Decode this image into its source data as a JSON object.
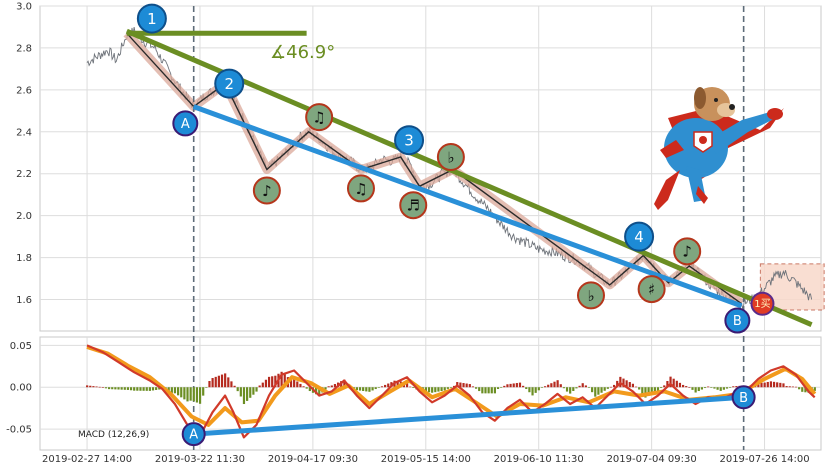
{
  "chart_data": [
    {
      "type": "line",
      "ylim": [
        1.45,
        3.0
      ],
      "y_ticks": [
        "3.0",
        "2.8",
        "2.6",
        "2.4",
        "2.2",
        "2.0",
        "1.8",
        "1.6"
      ],
      "y_tick_values": [
        3.0,
        2.8,
        2.6,
        2.4,
        2.2,
        2.0,
        1.8,
        1.6
      ],
      "x_ticks": [
        "2019-02-27 14:00",
        "2019-03-22 11:30",
        "2019-04-17 09:30",
        "2019-05-15 14:00",
        "2019-06-10 11:30",
        "2019-07-04 09:30",
        "2019-07-26 14:00"
      ],
      "x_tick_index": [
        0,
        108,
        216,
        324,
        432,
        540,
        648
      ],
      "x_range": [
        -45,
        702
      ],
      "grid": true,
      "price_series": [
        {
          "x": 0,
          "y": 2.73
        },
        {
          "x": 10,
          "y": 2.76
        },
        {
          "x": 20,
          "y": 2.79
        },
        {
          "x": 28,
          "y": 2.74
        },
        {
          "x": 38,
          "y": 2.86
        },
        {
          "x": 45,
          "y": 2.88
        },
        {
          "x": 55,
          "y": 2.83
        },
        {
          "x": 65,
          "y": 2.8
        },
        {
          "x": 78,
          "y": 2.69
        },
        {
          "x": 90,
          "y": 2.6
        },
        {
          "x": 102,
          "y": 2.52
        },
        {
          "x": 112,
          "y": 2.57
        },
        {
          "x": 122,
          "y": 2.6
        },
        {
          "x": 132,
          "y": 2.63
        },
        {
          "x": 142,
          "y": 2.54
        },
        {
          "x": 152,
          "y": 2.44
        },
        {
          "x": 162,
          "y": 2.33
        },
        {
          "x": 172,
          "y": 2.22
        },
        {
          "x": 182,
          "y": 2.26
        },
        {
          "x": 192,
          "y": 2.31
        },
        {
          "x": 202,
          "y": 2.37
        },
        {
          "x": 212,
          "y": 2.4
        },
        {
          "x": 222,
          "y": 2.37
        },
        {
          "x": 232,
          "y": 2.32
        },
        {
          "x": 242,
          "y": 2.28
        },
        {
          "x": 252,
          "y": 2.26
        },
        {
          "x": 262,
          "y": 2.22
        },
        {
          "x": 272,
          "y": 2.23
        },
        {
          "x": 282,
          "y": 2.27
        },
        {
          "x": 292,
          "y": 2.26
        },
        {
          "x": 300,
          "y": 2.28
        },
        {
          "x": 310,
          "y": 2.24
        },
        {
          "x": 318,
          "y": 2.14
        },
        {
          "x": 328,
          "y": 2.15
        },
        {
          "x": 340,
          "y": 2.2
        },
        {
          "x": 350,
          "y": 2.22
        },
        {
          "x": 360,
          "y": 2.16
        },
        {
          "x": 372,
          "y": 2.09
        },
        {
          "x": 384,
          "y": 2.03
        },
        {
          "x": 396,
          "y": 1.96
        },
        {
          "x": 408,
          "y": 1.9
        },
        {
          "x": 420,
          "y": 1.87
        },
        {
          "x": 432,
          "y": 1.84
        },
        {
          "x": 444,
          "y": 1.83
        },
        {
          "x": 456,
          "y": 1.81
        },
        {
          "x": 468,
          "y": 1.79
        },
        {
          "x": 480,
          "y": 1.75
        },
        {
          "x": 492,
          "y": 1.7
        },
        {
          "x": 500,
          "y": 1.67
        },
        {
          "x": 510,
          "y": 1.71
        },
        {
          "x": 522,
          "y": 1.76
        },
        {
          "x": 532,
          "y": 1.81
        },
        {
          "x": 540,
          "y": 1.78
        },
        {
          "x": 548,
          "y": 1.72
        },
        {
          "x": 556,
          "y": 1.68
        },
        {
          "x": 566,
          "y": 1.73
        },
        {
          "x": 576,
          "y": 1.76
        },
        {
          "x": 586,
          "y": 1.72
        },
        {
          "x": 596,
          "y": 1.67
        },
        {
          "x": 606,
          "y": 1.63
        },
        {
          "x": 616,
          "y": 1.6
        },
        {
          "x": 626,
          "y": 1.58
        },
        {
          "x": 636,
          "y": 1.6
        },
        {
          "x": 646,
          "y": 1.64
        },
        {
          "x": 656,
          "y": 1.7
        },
        {
          "x": 666,
          "y": 1.73
        },
        {
          "x": 676,
          "y": 1.69
        },
        {
          "x": 686,
          "y": 1.64
        },
        {
          "x": 693,
          "y": 1.6
        }
      ],
      "zigzag": [
        {
          "x": 38,
          "y": 2.87
        },
        {
          "x": 102,
          "y": 2.52
        },
        {
          "x": 132,
          "y": 2.63
        },
        {
          "x": 172,
          "y": 2.22
        },
        {
          "x": 212,
          "y": 2.4
        },
        {
          "x": 262,
          "y": 2.22
        },
        {
          "x": 300,
          "y": 2.28
        },
        {
          "x": 318,
          "y": 2.14
        },
        {
          "x": 350,
          "y": 2.22
        },
        {
          "x": 500,
          "y": 1.67
        },
        {
          "x": 532,
          "y": 1.81
        },
        {
          "x": 556,
          "y": 1.68
        },
        {
          "x": 576,
          "y": 1.76
        },
        {
          "x": 626,
          "y": 1.58
        }
      ],
      "trend_lines": [
        {
          "color": "#6b8e23",
          "from": {
            "x": 38,
            "y": 2.88
          },
          "to": {
            "x": 693,
            "y": 1.48
          }
        },
        {
          "color": "#2a90d8",
          "from": {
            "x": 102,
            "y": 2.52
          },
          "to": {
            "x": 626,
            "y": 1.57
          }
        },
        {
          "color": "#6b8e23",
          "from": {
            "x": 38,
            "y": 2.87
          },
          "to": {
            "x": 210,
            "y": 2.87
          }
        }
      ],
      "annotations": [
        {
          "label": "1",
          "x": 62,
          "y": 2.94,
          "style": "blue"
        },
        {
          "label": "2",
          "x": 136,
          "y": 2.63,
          "style": "blue"
        },
        {
          "label": "3",
          "x": 308,
          "y": 2.36,
          "style": "blue"
        },
        {
          "label": "4",
          "x": 528,
          "y": 1.9,
          "style": "blue"
        },
        {
          "label": "A",
          "x": 94,
          "y": 2.44,
          "style": "blue-ring"
        },
        {
          "label": "B",
          "x": 622,
          "y": 1.5,
          "style": "blue-ring"
        },
        {
          "label": "♪",
          "x": 172,
          "y": 2.12,
          "style": "green"
        },
        {
          "label": "♫",
          "x": 222,
          "y": 2.47,
          "style": "green"
        },
        {
          "label": "♫",
          "x": 262,
          "y": 2.13,
          "style": "green"
        },
        {
          "label": "♬",
          "x": 312,
          "y": 2.05,
          "style": "green"
        },
        {
          "label": "♭",
          "x": 348,
          "y": 2.28,
          "style": "green"
        },
        {
          "label": "♭",
          "x": 482,
          "y": 1.62,
          "style": "green"
        },
        {
          "label": "♯",
          "x": 540,
          "y": 1.65,
          "style": "green"
        },
        {
          "label": "♪",
          "x": 574,
          "y": 1.83,
          "style": "green"
        }
      ],
      "vertical_markers": [
        102,
        628
      ],
      "angle_label": "∡46.9°",
      "badge_label": "1买",
      "highlight_box": {
        "x0": 644,
        "x1": 705,
        "y0": 1.55,
        "y1": 1.77
      }
    },
    {
      "type": "line",
      "title": "MACD (12,26,9)",
      "ylim": [
        -0.075,
        0.06
      ],
      "y_ticks": [
        "0.05",
        "0.00",
        "-0.05"
      ],
      "y_tick_values": [
        0.05,
        0.0,
        -0.05
      ],
      "dif": [
        {
          "x": 0,
          "y": 0.05
        },
        {
          "x": 15,
          "y": 0.042
        },
        {
          "x": 30,
          "y": 0.03
        },
        {
          "x": 45,
          "y": 0.018
        },
        {
          "x": 60,
          "y": 0.008
        },
        {
          "x": 72,
          "y": -0.002
        },
        {
          "x": 84,
          "y": -0.02
        },
        {
          "x": 96,
          "y": -0.045
        },
        {
          "x": 108,
          "y": -0.058
        },
        {
          "x": 120,
          "y": -0.03
        },
        {
          "x": 132,
          "y": -0.01
        },
        {
          "x": 140,
          "y": -0.03
        },
        {
          "x": 150,
          "y": -0.06
        },
        {
          "x": 162,
          "y": -0.045
        },
        {
          "x": 174,
          "y": -0.01
        },
        {
          "x": 186,
          "y": 0.015
        },
        {
          "x": 198,
          "y": 0.02
        },
        {
          "x": 210,
          "y": 0.005
        },
        {
          "x": 222,
          "y": -0.01
        },
        {
          "x": 234,
          "y": -0.005
        },
        {
          "x": 246,
          "y": 0.008
        },
        {
          "x": 258,
          "y": -0.01
        },
        {
          "x": 270,
          "y": -0.025
        },
        {
          "x": 282,
          "y": -0.01
        },
        {
          "x": 294,
          "y": 0.005
        },
        {
          "x": 306,
          "y": 0.012
        },
        {
          "x": 318,
          "y": -0.005
        },
        {
          "x": 330,
          "y": -0.018
        },
        {
          "x": 342,
          "y": -0.01
        },
        {
          "x": 354,
          "y": 0.002
        },
        {
          "x": 366,
          "y": -0.01
        },
        {
          "x": 378,
          "y": -0.03
        },
        {
          "x": 390,
          "y": -0.04
        },
        {
          "x": 402,
          "y": -0.025
        },
        {
          "x": 414,
          "y": -0.015
        },
        {
          "x": 426,
          "y": -0.03
        },
        {
          "x": 438,
          "y": -0.02
        },
        {
          "x": 450,
          "y": -0.008
        },
        {
          "x": 462,
          "y": -0.02
        },
        {
          "x": 474,
          "y": -0.012
        },
        {
          "x": 486,
          "y": -0.025
        },
        {
          "x": 498,
          "y": -0.01
        },
        {
          "x": 510,
          "y": 0.005
        },
        {
          "x": 522,
          "y": -0.005
        },
        {
          "x": 534,
          "y": -0.02
        },
        {
          "x": 546,
          "y": -0.01
        },
        {
          "x": 558,
          "y": 0.004
        },
        {
          "x": 570,
          "y": -0.01
        },
        {
          "x": 582,
          "y": -0.02
        },
        {
          "x": 594,
          "y": -0.012
        },
        {
          "x": 606,
          "y": -0.015
        },
        {
          "x": 618,
          "y": -0.008
        },
        {
          "x": 630,
          "y": -0.005
        },
        {
          "x": 642,
          "y": 0.01
        },
        {
          "x": 654,
          "y": 0.02
        },
        {
          "x": 666,
          "y": 0.025
        },
        {
          "x": 678,
          "y": 0.015
        },
        {
          "x": 690,
          "y": -0.005
        },
        {
          "x": 696,
          "y": -0.012
        }
      ],
      "dea": [
        {
          "x": 0,
          "y": 0.048
        },
        {
          "x": 20,
          "y": 0.04
        },
        {
          "x": 40,
          "y": 0.025
        },
        {
          "x": 60,
          "y": 0.012
        },
        {
          "x": 80,
          "y": -0.008
        },
        {
          "x": 100,
          "y": -0.035
        },
        {
          "x": 116,
          "y": -0.045
        },
        {
          "x": 132,
          "y": -0.025
        },
        {
          "x": 148,
          "y": -0.042
        },
        {
          "x": 164,
          "y": -0.04
        },
        {
          "x": 180,
          "y": -0.01
        },
        {
          "x": 196,
          "y": 0.012
        },
        {
          "x": 214,
          "y": 0.005
        },
        {
          "x": 232,
          "y": -0.008
        },
        {
          "x": 250,
          "y": 0.002
        },
        {
          "x": 270,
          "y": -0.02
        },
        {
          "x": 290,
          "y": -0.005
        },
        {
          "x": 308,
          "y": 0.008
        },
        {
          "x": 330,
          "y": -0.012
        },
        {
          "x": 352,
          "y": -0.002
        },
        {
          "x": 374,
          "y": -0.02
        },
        {
          "x": 392,
          "y": -0.035
        },
        {
          "x": 414,
          "y": -0.02
        },
        {
          "x": 436,
          "y": -0.022
        },
        {
          "x": 458,
          "y": -0.012
        },
        {
          "x": 480,
          "y": -0.018
        },
        {
          "x": 504,
          "y": -0.005
        },
        {
          "x": 528,
          "y": -0.01
        },
        {
          "x": 552,
          "y": -0.005
        },
        {
          "x": 576,
          "y": -0.015
        },
        {
          "x": 600,
          "y": -0.012
        },
        {
          "x": 624,
          "y": -0.008
        },
        {
          "x": 648,
          "y": 0.01
        },
        {
          "x": 668,
          "y": 0.022
        },
        {
          "x": 684,
          "y": 0.01
        },
        {
          "x": 696,
          "y": -0.008
        }
      ],
      "trend_line": {
        "from": {
          "x": 102,
          "y": -0.056
        },
        "to": {
          "x": 628,
          "y": -0.012
        }
      },
      "annotations": [
        {
          "label": "A",
          "x": 102,
          "y": -0.056
        },
        {
          "label": "B",
          "x": 628,
          "y": -0.012
        }
      ]
    }
  ],
  "colors": {
    "price": "#6e737a",
    "olive_trend": "#6b8e23",
    "blue_trend": "#2a90d8",
    "zigzag_halo": "#dba89a",
    "circle_blue": "#1d8bd6",
    "circle_green": "#7fa67f",
    "circle_green_ring": "#b5361b",
    "dif": "#d13a2a",
    "dea": "#f29a1c",
    "hist_pos": "#b52a1f",
    "hist_neg": "#6b8e23",
    "grid": "#dddddd",
    "axes_frame": "#c8c8c8"
  },
  "mascot": "flying-superhero-dog-icon"
}
